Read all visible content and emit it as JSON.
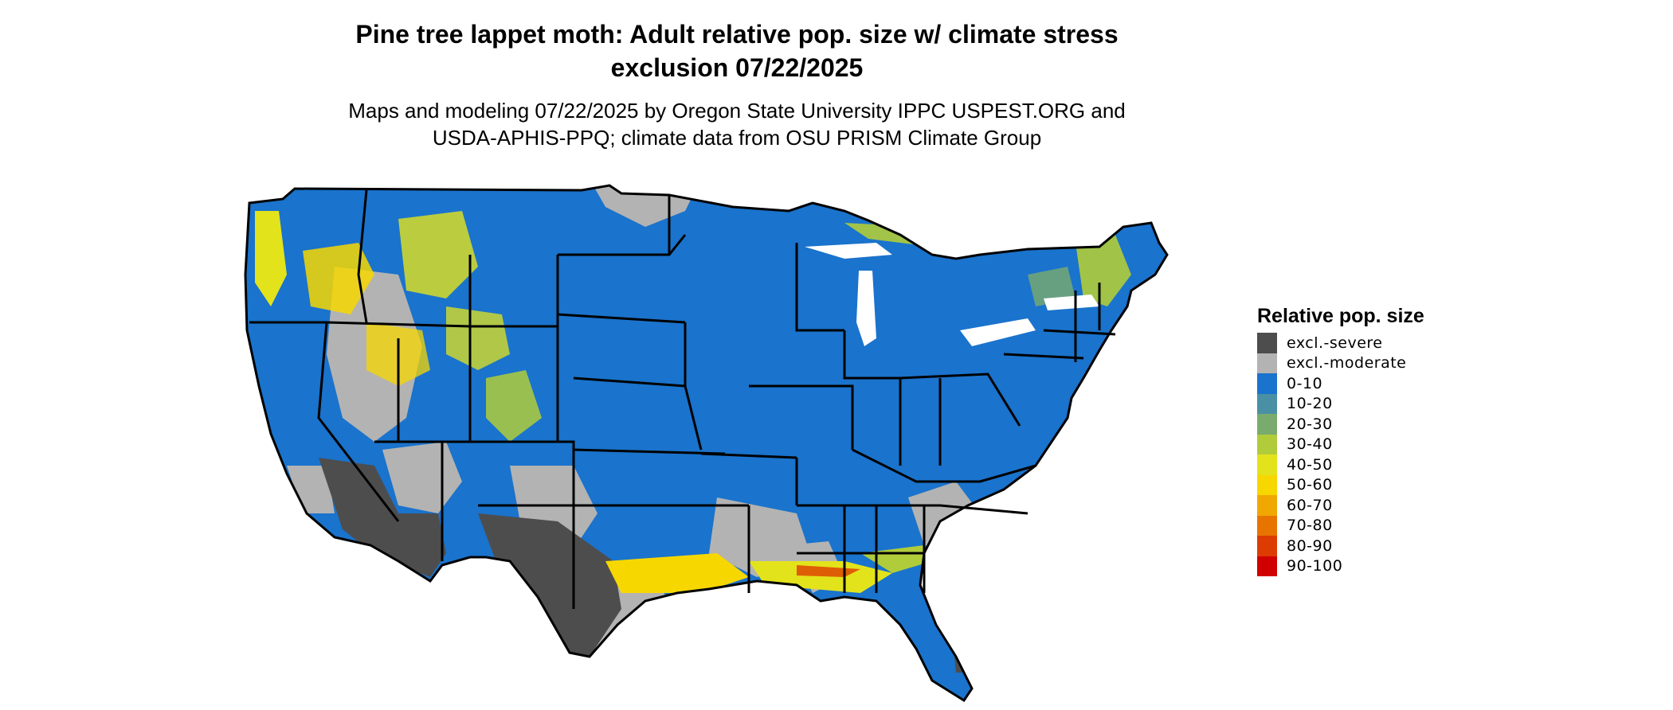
{
  "title": {
    "line1": "Pine tree lappet moth: Adult relative pop. size w/ climate stress",
    "line2": "exclusion 07/22/2025"
  },
  "subtitle": {
    "line1": "Maps and modeling 07/22/2025 by Oregon State University IPPC USPEST.ORG and",
    "line2": "USDA-APHIS-PPQ; climate data from OSU PRISM Climate Group"
  },
  "map": {
    "region": "Contiguous United States",
    "dominant_class": "0-10",
    "colors": {
      "land": "#1a73cc",
      "state_border": "#000000"
    }
  },
  "legend": {
    "title": "Relative pop. size",
    "items": [
      {
        "label": "excl.-severe",
        "color": "#4d4d4d"
      },
      {
        "label": "excl.-moderate",
        "color": "#b3b3b3"
      },
      {
        "label": "0-10",
        "color": "#1a73cc"
      },
      {
        "label": "10-20",
        "color": "#4a90a4"
      },
      {
        "label": "20-30",
        "color": "#7aab6e"
      },
      {
        "label": "30-40",
        "color": "#b0cc3a"
      },
      {
        "label": "40-50",
        "color": "#e3e31c"
      },
      {
        "label": "50-60",
        "color": "#f7d700"
      },
      {
        "label": "60-70",
        "color": "#f0a800"
      },
      {
        "label": "70-80",
        "color": "#e87400"
      },
      {
        "label": "80-90",
        "color": "#dc3c00"
      },
      {
        "label": "90-100",
        "color": "#d10000"
      }
    ]
  }
}
